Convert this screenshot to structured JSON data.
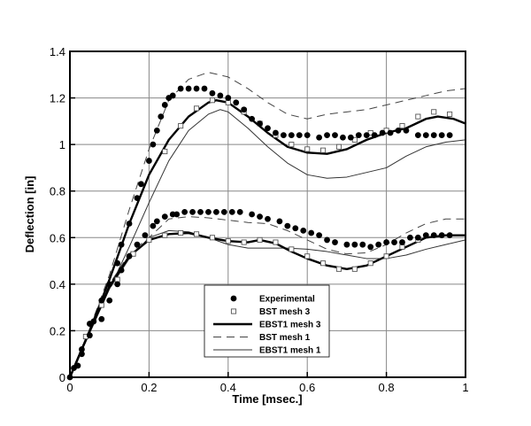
{
  "chart_data": {
    "type": "line",
    "title": "",
    "xlabel": "Time [msec.]",
    "ylabel": "Deflection [in]",
    "xlim": [
      0,
      1
    ],
    "ylim": [
      0,
      1.4
    ],
    "xticks": [
      "0",
      "0.2",
      "0.4",
      "0.6",
      "0.8",
      "1"
    ],
    "yticks": [
      "0",
      "0.2",
      "0.4",
      "0.6",
      "0.8",
      "1",
      "1.2",
      "1.4"
    ],
    "grid": true,
    "legend_position": "bottom-center",
    "series": [
      {
        "name": "Experimental",
        "style": "filled-circle",
        "color": "#000000",
        "curves": [
          [
            [
              0,
              0
            ],
            [
              0.02,
              0.05
            ],
            [
              0.03,
              0.12
            ],
            [
              0.05,
              0.23
            ],
            [
              0.06,
              0.24
            ],
            [
              0.08,
              0.33
            ],
            [
              0.1,
              0.4
            ],
            [
              0.12,
              0.49
            ],
            [
              0.13,
              0.57
            ],
            [
              0.15,
              0.66
            ],
            [
              0.17,
              0.77
            ],
            [
              0.18,
              0.83
            ],
            [
              0.2,
              0.93
            ],
            [
              0.21,
              1.0
            ],
            [
              0.22,
              1.06
            ],
            [
              0.23,
              1.12
            ],
            [
              0.24,
              1.17
            ],
            [
              0.25,
              1.2
            ],
            [
              0.26,
              1.21
            ],
            [
              0.28,
              1.24
            ],
            [
              0.3,
              1.24
            ],
            [
              0.32,
              1.24
            ],
            [
              0.34,
              1.24
            ],
            [
              0.36,
              1.22
            ],
            [
              0.38,
              1.21
            ],
            [
              0.4,
              1.2
            ],
            [
              0.42,
              1.18
            ],
            [
              0.44,
              1.15
            ],
            [
              0.46,
              1.11
            ],
            [
              0.48,
              1.09
            ],
            [
              0.5,
              1.07
            ],
            [
              0.52,
              1.05
            ],
            [
              0.54,
              1.04
            ],
            [
              0.56,
              1.04
            ],
            [
              0.58,
              1.04
            ],
            [
              0.6,
              1.04
            ],
            [
              0.63,
              1.03
            ],
            [
              0.65,
              1.04
            ],
            [
              0.67,
              1.04
            ],
            [
              0.69,
              1.03
            ],
            [
              0.71,
              1.03
            ],
            [
              0.73,
              1.04
            ],
            [
              0.75,
              1.04
            ],
            [
              0.77,
              1.04
            ],
            [
              0.79,
              1.05
            ],
            [
              0.81,
              1.05
            ],
            [
              0.83,
              1.06
            ],
            [
              0.85,
              1.06
            ],
            [
              0.88,
              1.04
            ],
            [
              0.9,
              1.04
            ],
            [
              0.92,
              1.04
            ],
            [
              0.94,
              1.04
            ],
            [
              0.96,
              1.04
            ]
          ],
          [
            [
              0.01,
              0.04
            ],
            [
              0.03,
              0.1
            ],
            [
              0.05,
              0.18
            ],
            [
              0.08,
              0.25
            ],
            [
              0.1,
              0.33
            ],
            [
              0.12,
              0.4
            ],
            [
              0.13,
              0.46
            ],
            [
              0.15,
              0.52
            ],
            [
              0.17,
              0.57
            ],
            [
              0.19,
              0.61
            ],
            [
              0.21,
              0.65
            ],
            [
              0.22,
              0.67
            ],
            [
              0.24,
              0.69
            ],
            [
              0.26,
              0.7
            ],
            [
              0.27,
              0.7
            ],
            [
              0.29,
              0.71
            ],
            [
              0.31,
              0.71
            ],
            [
              0.33,
              0.71
            ],
            [
              0.35,
              0.71
            ],
            [
              0.37,
              0.71
            ],
            [
              0.39,
              0.71
            ],
            [
              0.41,
              0.71
            ],
            [
              0.43,
              0.71
            ],
            [
              0.46,
              0.7
            ],
            [
              0.48,
              0.69
            ],
            [
              0.5,
              0.68
            ],
            [
              0.53,
              0.67
            ],
            [
              0.55,
              0.65
            ],
            [
              0.57,
              0.64
            ],
            [
              0.59,
              0.63
            ],
            [
              0.61,
              0.62
            ],
            [
              0.63,
              0.61
            ],
            [
              0.65,
              0.59
            ],
            [
              0.67,
              0.58
            ],
            [
              0.7,
              0.57
            ],
            [
              0.72,
              0.57
            ],
            [
              0.74,
              0.57
            ],
            [
              0.76,
              0.56
            ],
            [
              0.78,
              0.57
            ],
            [
              0.8,
              0.58
            ],
            [
              0.82,
              0.58
            ],
            [
              0.84,
              0.58
            ],
            [
              0.86,
              0.6
            ],
            [
              0.88,
              0.6
            ],
            [
              0.9,
              0.61
            ],
            [
              0.92,
              0.61
            ],
            [
              0.94,
              0.61
            ],
            [
              0.96,
              0.61
            ]
          ]
        ]
      },
      {
        "name": "BST mesh 3",
        "style": "open-square",
        "color": "#000000",
        "curves": [
          [
            [
              0.24,
              0.97
            ],
            [
              0.28,
              1.08
            ],
            [
              0.32,
              1.155
            ],
            [
              0.36,
              1.19
            ],
            [
              0.4,
              1.18
            ],
            [
              0.44,
              1.14
            ],
            [
              0.48,
              1.09
            ],
            [
              0.52,
              1.04
            ],
            [
              0.56,
              1.0
            ],
            [
              0.6,
              0.98
            ],
            [
              0.64,
              0.975
            ],
            [
              0.68,
              0.99
            ],
            [
              0.72,
              1.02
            ],
            [
              0.76,
              1.05
            ],
            [
              0.8,
              1.06
            ],
            [
              0.84,
              1.08
            ],
            [
              0.88,
              1.12
            ],
            [
              0.92,
              1.14
            ],
            [
              0.96,
              1.13
            ]
          ],
          [
            [
              0.04,
              0.175
            ],
            [
              0.08,
              0.31
            ],
            [
              0.12,
              0.42
            ],
            [
              0.16,
              0.53
            ],
            [
              0.2,
              0.59
            ],
            [
              0.24,
              0.61
            ],
            [
              0.28,
              0.62
            ],
            [
              0.32,
              0.615
            ],
            [
              0.36,
              0.6
            ],
            [
              0.4,
              0.585
            ],
            [
              0.44,
              0.58
            ],
            [
              0.48,
              0.59
            ],
            [
              0.52,
              0.58
            ],
            [
              0.56,
              0.55
            ],
            [
              0.6,
              0.52
            ],
            [
              0.64,
              0.49
            ],
            [
              0.68,
              0.465
            ],
            [
              0.72,
              0.465
            ],
            [
              0.76,
              0.49
            ],
            [
              0.8,
              0.52
            ],
            [
              0.84,
              0.56
            ],
            [
              0.88,
              0.59
            ]
          ]
        ]
      },
      {
        "name": "EBST1 mesh 3",
        "style": "thick-solid",
        "color": "#000000",
        "curves": [
          [
            [
              0,
              0
            ],
            [
              0.05,
              0.2
            ],
            [
              0.1,
              0.42
            ],
            [
              0.15,
              0.66
            ],
            [
              0.2,
              0.87
            ],
            [
              0.25,
              1.02
            ],
            [
              0.3,
              1.12
            ],
            [
              0.35,
              1.18
            ],
            [
              0.37,
              1.19
            ],
            [
              0.4,
              1.18
            ],
            [
              0.45,
              1.12
            ],
            [
              0.5,
              1.05
            ],
            [
              0.55,
              0.99
            ],
            [
              0.6,
              0.965
            ],
            [
              0.65,
              0.96
            ],
            [
              0.7,
              0.98
            ],
            [
              0.75,
              1.02
            ],
            [
              0.8,
              1.05
            ],
            [
              0.85,
              1.07
            ],
            [
              0.9,
              1.11
            ],
            [
              0.93,
              1.12
            ],
            [
              0.97,
              1.11
            ],
            [
              1.0,
              1.09
            ]
          ],
          [
            [
              0,
              0
            ],
            [
              0.05,
              0.2
            ],
            [
              0.1,
              0.39
            ],
            [
              0.15,
              0.52
            ],
            [
              0.2,
              0.59
            ],
            [
              0.25,
              0.615
            ],
            [
              0.3,
              0.62
            ],
            [
              0.35,
              0.6
            ],
            [
              0.4,
              0.585
            ],
            [
              0.45,
              0.58
            ],
            [
              0.48,
              0.59
            ],
            [
              0.52,
              0.575
            ],
            [
              0.56,
              0.54
            ],
            [
              0.6,
              0.51
            ],
            [
              0.65,
              0.48
            ],
            [
              0.7,
              0.465
            ],
            [
              0.75,
              0.48
            ],
            [
              0.8,
              0.52
            ],
            [
              0.85,
              0.56
            ],
            [
              0.9,
              0.6
            ],
            [
              0.95,
              0.61
            ],
            [
              1.0,
              0.61
            ]
          ]
        ]
      },
      {
        "name": "BST mesh 1",
        "style": "dashed",
        "color": "#000000",
        "curves": [
          [
            [
              0,
              0
            ],
            [
              0.05,
              0.21
            ],
            [
              0.1,
              0.44
            ],
            [
              0.15,
              0.72
            ],
            [
              0.2,
              0.98
            ],
            [
              0.25,
              1.19
            ],
            [
              0.3,
              1.28
            ],
            [
              0.35,
              1.31
            ],
            [
              0.4,
              1.29
            ],
            [
              0.45,
              1.24
            ],
            [
              0.5,
              1.18
            ],
            [
              0.55,
              1.13
            ],
            [
              0.6,
              1.11
            ],
            [
              0.65,
              1.13
            ],
            [
              0.7,
              1.14
            ],
            [
              0.75,
              1.15
            ],
            [
              0.8,
              1.17
            ],
            [
              0.85,
              1.19
            ],
            [
              0.9,
              1.21
            ],
            [
              0.95,
              1.23
            ],
            [
              1.0,
              1.24
            ]
          ],
          [
            [
              0,
              0
            ],
            [
              0.05,
              0.2
            ],
            [
              0.1,
              0.4
            ],
            [
              0.15,
              0.53
            ],
            [
              0.2,
              0.6
            ],
            [
              0.25,
              0.68
            ],
            [
              0.3,
              0.69
            ],
            [
              0.35,
              0.685
            ],
            [
              0.4,
              0.675
            ],
            [
              0.45,
              0.665
            ],
            [
              0.5,
              0.66
            ],
            [
              0.55,
              0.63
            ],
            [
              0.6,
              0.59
            ],
            [
              0.65,
              0.55
            ],
            [
              0.7,
              0.53
            ],
            [
              0.75,
              0.535
            ],
            [
              0.8,
              0.57
            ],
            [
              0.85,
              0.62
            ],
            [
              0.9,
              0.66
            ],
            [
              0.95,
              0.68
            ],
            [
              1.0,
              0.68
            ]
          ]
        ]
      },
      {
        "name": "EBST1 mesh 1",
        "style": "thin-solid",
        "color": "#000000",
        "curves": [
          [
            [
              0,
              0
            ],
            [
              0.05,
              0.19
            ],
            [
              0.1,
              0.38
            ],
            [
              0.15,
              0.56
            ],
            [
              0.2,
              0.75
            ],
            [
              0.25,
              0.93
            ],
            [
              0.3,
              1.06
            ],
            [
              0.35,
              1.13
            ],
            [
              0.38,
              1.15
            ],
            [
              0.4,
              1.14
            ],
            [
              0.45,
              1.07
            ],
            [
              0.5,
              0.99
            ],
            [
              0.55,
              0.92
            ],
            [
              0.6,
              0.87
            ],
            [
              0.65,
              0.855
            ],
            [
              0.7,
              0.86
            ],
            [
              0.75,
              0.88
            ],
            [
              0.8,
              0.9
            ],
            [
              0.85,
              0.95
            ],
            [
              0.9,
              0.99
            ],
            [
              0.95,
              1.01
            ],
            [
              1.0,
              1.02
            ]
          ],
          [
            [
              0,
              0
            ],
            [
              0.05,
              0.19
            ],
            [
              0.1,
              0.38
            ],
            [
              0.15,
              0.51
            ],
            [
              0.2,
              0.6
            ],
            [
              0.25,
              0.63
            ],
            [
              0.3,
              0.625
            ],
            [
              0.35,
              0.6
            ],
            [
              0.4,
              0.57
            ],
            [
              0.45,
              0.555
            ],
            [
              0.5,
              0.555
            ],
            [
              0.55,
              0.555
            ],
            [
              0.6,
              0.55
            ],
            [
              0.65,
              0.54
            ],
            [
              0.7,
              0.525
            ],
            [
              0.75,
              0.51
            ],
            [
              0.8,
              0.51
            ],
            [
              0.85,
              0.525
            ],
            [
              0.9,
              0.55
            ],
            [
              0.95,
              0.57
            ],
            [
              1.0,
              0.59
            ]
          ]
        ]
      }
    ]
  }
}
